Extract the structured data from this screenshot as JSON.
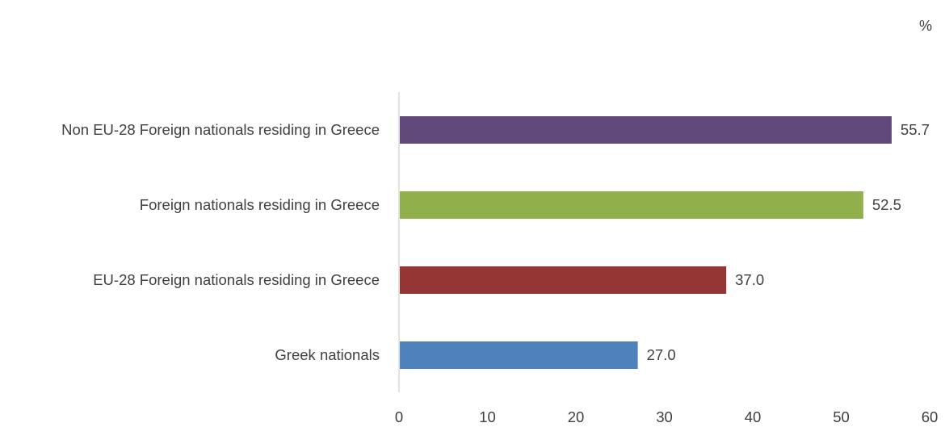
{
  "chart_data": {
    "type": "bar",
    "orientation": "horizontal",
    "unit_label": "%",
    "categories": [
      "Non EU-28 Foreign nationals residing in Greece",
      "Foreign nationals residing in Greece",
      "EU-28 Foreign nationals residing in Greece",
      "Greek nationals"
    ],
    "values": [
      55.7,
      52.5,
      37.0,
      27.0
    ],
    "value_labels": [
      "55.7",
      "52.5",
      "37.0",
      "27.0"
    ],
    "colors": [
      "#604a7b",
      "#8fb04b",
      "#943634",
      "#4f81bd"
    ],
    "xlim": [
      0,
      60
    ],
    "x_ticks": [
      0,
      10,
      20,
      30,
      40,
      50,
      60
    ],
    "grid": false,
    "legend": "none"
  }
}
